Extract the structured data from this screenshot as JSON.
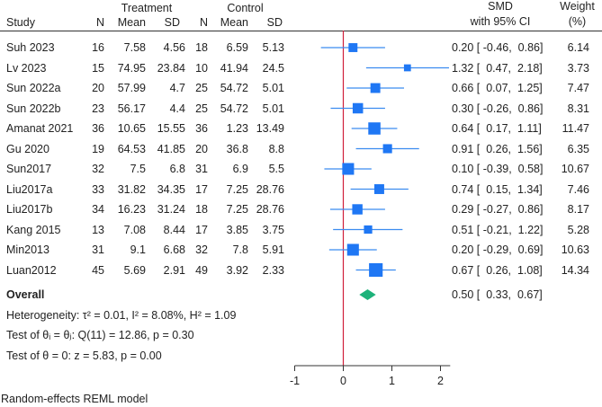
{
  "header": {
    "group_treatment": "Treatment",
    "group_control": "Control",
    "study": "Study",
    "n": "N",
    "mean": "Mean",
    "sd": "SD",
    "smd_line1": "SMD",
    "smd_line2": "with 95% CI",
    "weight_line1": "Weight",
    "weight_line2": "(%)"
  },
  "chart_data": {
    "type": "forest",
    "xlim": [
      -1,
      2.2
    ],
    "xticks": [
      "-1",
      "0",
      "1",
      "2"
    ],
    "reference_line": 0,
    "colors": {
      "study": "#1f77f4",
      "ci": "#3b8cf0",
      "overall": "#1db27a",
      "reference": "#d0203a"
    },
    "studies": [
      {
        "study": "Suh 2023",
        "t_n": "16",
        "t_mean": "7.58",
        "t_sd": "4.56",
        "c_n": "18",
        "c_mean": "6.59",
        "c_sd": "5.13",
        "smd": 0.2,
        "lo": -0.46,
        "hi": 0.86,
        "ci_text": "0.20 [ -0.46,  0.86]",
        "weight": "6.14"
      },
      {
        "study": "Lv 2023",
        "t_n": "15",
        "t_mean": "74.95",
        "t_sd": "23.84",
        "c_n": "10",
        "c_mean": "41.94",
        "c_sd": "24.5",
        "smd": 1.32,
        "lo": 0.47,
        "hi": 2.18,
        "ci_text": "1.32 [  0.47,  2.18]",
        "weight": "3.73"
      },
      {
        "study": "Sun 2022a",
        "t_n": "20",
        "t_mean": "57.99",
        "t_sd": "4.7",
        "c_n": "25",
        "c_mean": "54.72",
        "c_sd": "5.01",
        "smd": 0.66,
        "lo": 0.07,
        "hi": 1.25,
        "ci_text": "0.66 [  0.07,  1.25]",
        "weight": "7.47"
      },
      {
        "study": "Sun 2022b",
        "t_n": "23",
        "t_mean": "56.17",
        "t_sd": "4.4",
        "c_n": "25",
        "c_mean": "54.72",
        "c_sd": "5.01",
        "smd": 0.3,
        "lo": -0.26,
        "hi": 0.86,
        "ci_text": "0.30 [ -0.26,  0.86]",
        "weight": "8.31"
      },
      {
        "study": "Amanat 2021",
        "t_n": "36",
        "t_mean": "10.65",
        "t_sd": "15.55",
        "c_n": "36",
        "c_mean": "1.23",
        "c_sd": "13.49",
        "smd": 0.64,
        "lo": 0.17,
        "hi": 1.11,
        "ci_text": "0.64 [  0.17,  1.11]",
        "weight": "11.47"
      },
      {
        "study": "Gu 2020",
        "t_n": "19",
        "t_mean": "64.53",
        "t_sd": "41.85",
        "c_n": "20",
        "c_mean": "36.8",
        "c_sd": "8.8",
        "smd": 0.91,
        "lo": 0.26,
        "hi": 1.56,
        "ci_text": "0.91 [  0.26,  1.56]",
        "weight": "6.35"
      },
      {
        "study": "Sun2017",
        "t_n": "32",
        "t_mean": "7.5",
        "t_sd": "6.8",
        "c_n": "31",
        "c_mean": "6.9",
        "c_sd": "5.5",
        "smd": 0.1,
        "lo": -0.39,
        "hi": 0.58,
        "ci_text": "0.10 [ -0.39,  0.58]",
        "weight": "10.67"
      },
      {
        "study": "Liu2017a",
        "t_n": "33",
        "t_mean": "31.82",
        "t_sd": "34.35",
        "c_n": "17",
        "c_mean": "7.25",
        "c_sd": "28.76",
        "smd": 0.74,
        "lo": 0.15,
        "hi": 1.34,
        "ci_text": "0.74 [  0.15,  1.34]",
        "weight": "7.46"
      },
      {
        "study": "Liu2017b",
        "t_n": "34",
        "t_mean": "16.23",
        "t_sd": "31.24",
        "c_n": "18",
        "c_mean": "7.25",
        "c_sd": "28.76",
        "smd": 0.29,
        "lo": -0.27,
        "hi": 0.86,
        "ci_text": "0.29 [ -0.27,  0.86]",
        "weight": "8.17"
      },
      {
        "study": "Kang 2015",
        "t_n": "13",
        "t_mean": "7.08",
        "t_sd": "8.44",
        "c_n": "17",
        "c_mean": "3.85",
        "c_sd": "3.75",
        "smd": 0.51,
        "lo": -0.21,
        "hi": 1.22,
        "ci_text": "0.51 [ -0.21,  1.22]",
        "weight": "5.28"
      },
      {
        "study": "Min2013",
        "t_n": "31",
        "t_mean": "9.1",
        "t_sd": "6.68",
        "c_n": "32",
        "c_mean": "7.8",
        "c_sd": "5.91",
        "smd": 0.2,
        "lo": -0.29,
        "hi": 0.69,
        "ci_text": "0.20 [ -0.29,  0.69]",
        "weight": "10.63"
      },
      {
        "study": "Luan2012",
        "t_n": "45",
        "t_mean": "5.69",
        "t_sd": "2.91",
        "c_n": "49",
        "c_mean": "3.92",
        "c_sd": "2.33",
        "smd": 0.67,
        "lo": 0.26,
        "hi": 1.08,
        "ci_text": "0.67 [  0.26,  1.08]",
        "weight": "14.34"
      }
    ],
    "overall": {
      "label": "Overall",
      "smd": 0.5,
      "lo": 0.33,
      "hi": 0.67,
      "ci_text": "0.50 [  0.33,  0.67]"
    }
  },
  "footer": {
    "heterogeneity": "Heterogeneity: τ² = 0.01, I² = 8.08%, H² = 1.09",
    "test_thetas": "Test of θᵢ = θⱼ: Q(11) = 12.86, p = 0.30",
    "test_zero": "Test of θ = 0: z = 5.83, p = 0.00",
    "model_note": "Random-effects REML model"
  }
}
